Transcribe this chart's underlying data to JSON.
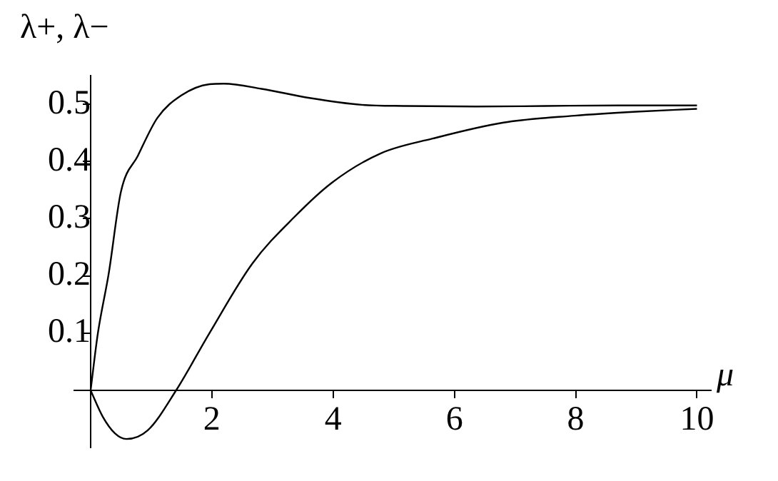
{
  "chart_data": {
    "type": "line",
    "xlabel": "μ",
    "ylabel": "λ+, λ−",
    "xlim": [
      -0.27,
      10.23
    ],
    "ylim": [
      -0.1,
      0.55
    ],
    "xticks": [
      2,
      4,
      6,
      8,
      10
    ],
    "yticks": [
      0.1,
      0.2,
      0.3,
      0.4,
      0.5
    ],
    "grid": false,
    "legend": false,
    "marker": "none",
    "line_style": "solid",
    "series": [
      {
        "color": "#000000",
        "x": [
          0,
          0.12,
          0.3,
          0.5,
          0.78,
          1.1,
          1.49,
          1.96,
          2.2,
          2.82,
          3.61,
          4.47,
          5.2,
          6.35,
          7.5,
          8.7,
          10
        ],
        "values": [
          0,
          0.1,
          0.205,
          0.347,
          0.41,
          0.476,
          0.515,
          0.535,
          0.536,
          0.527,
          0.511,
          0.499,
          0.497,
          0.496,
          0.497,
          0.498,
          0.498
        ]
      },
      {
        "color": "#000000",
        "x": [
          0,
          0.2,
          0.4,
          0.59,
          0.94,
          1.41,
          1.96,
          2.67,
          3.37,
          3.98,
          4.78,
          5.64,
          6.81,
          7.98,
          9,
          10
        ],
        "values": [
          0,
          -0.046,
          -0.075,
          -0.085,
          -0.07,
          0,
          0.1,
          0.222,
          0.304,
          0.363,
          0.414,
          0.44,
          0.468,
          0.48,
          0.487,
          0.492
        ]
      }
    ]
  }
}
